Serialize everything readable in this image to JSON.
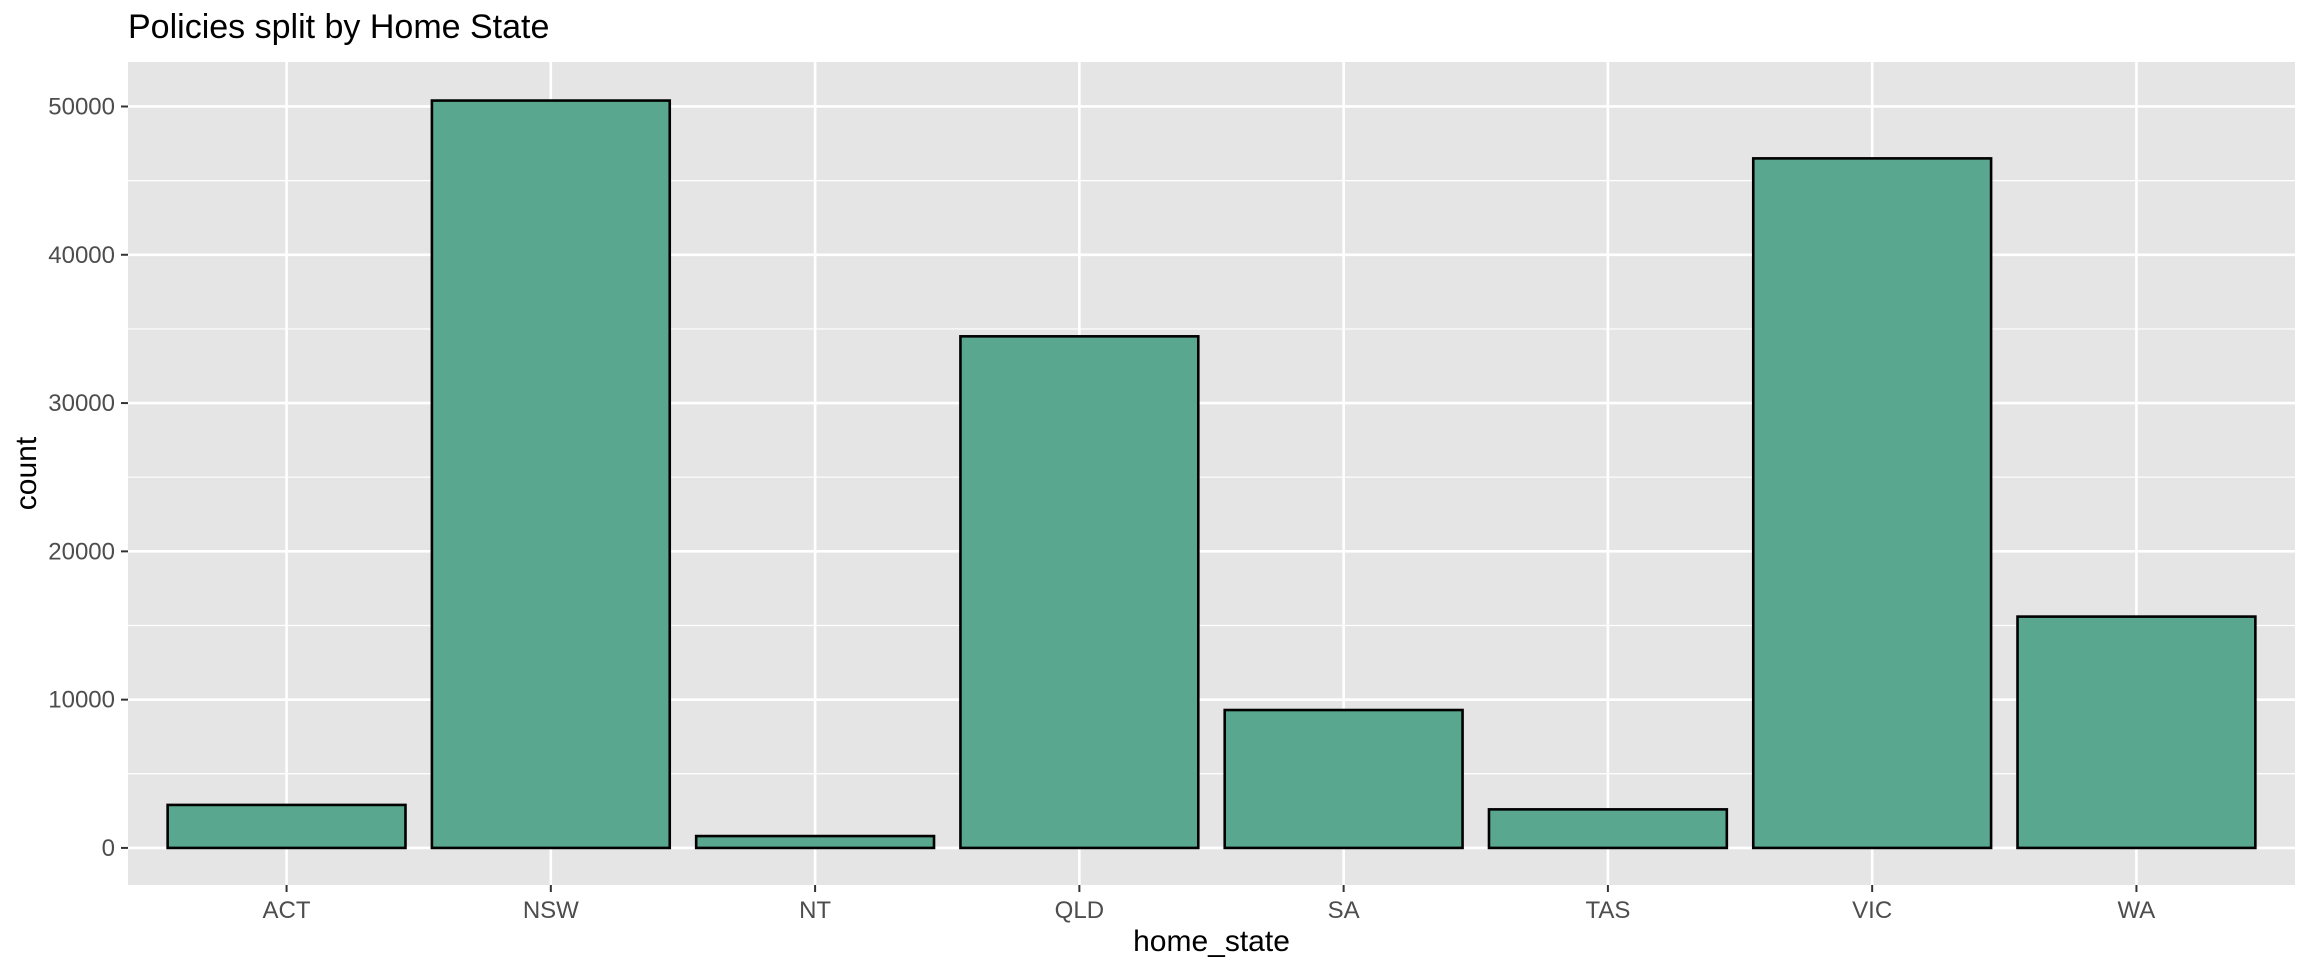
{
  "chart_data": {
    "type": "bar",
    "title": "Policies split by Home State",
    "xlabel": "home_state",
    "ylabel": "count",
    "categories": [
      "ACT",
      "NSW",
      "NT",
      "QLD",
      "SA",
      "TAS",
      "VIC",
      "WA"
    ],
    "values": [
      2900,
      50400,
      800,
      34500,
      9300,
      2600,
      46500,
      15600
    ],
    "ylim": [
      -2500,
      53000
    ],
    "yticks": [
      0,
      10000,
      20000,
      30000,
      40000,
      50000
    ],
    "ytick_labels": [
      "0",
      "10000",
      "20000",
      "30000",
      "40000",
      "50000"
    ],
    "grid": true,
    "legend": "none"
  },
  "colors": {
    "panel_background": "#e5e5e5",
    "grid_major": "#ffffff",
    "bar_fill": "#5aa790",
    "bar_outline": "#000000",
    "tick_text": "#4d4d4d",
    "text": "#000000"
  }
}
